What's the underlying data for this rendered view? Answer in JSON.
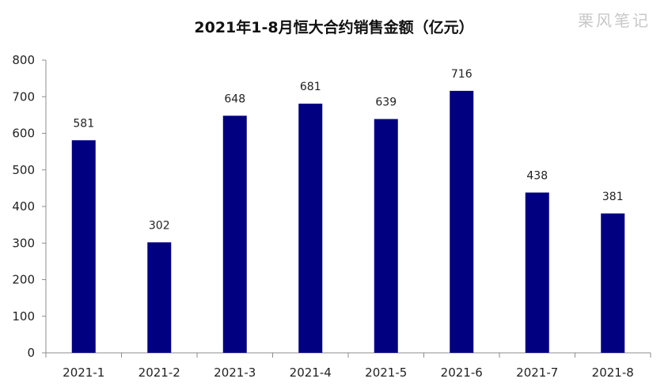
{
  "chart_data": {
    "type": "bar",
    "title": "2021年1-8月恒大合约销售金额（亿元）",
    "categories": [
      "2021-1",
      "2021-2",
      "2021-3",
      "2021-4",
      "2021-5",
      "2021-6",
      "2021-7",
      "2021-8"
    ],
    "series": [
      {
        "values": [
          581,
          302,
          648,
          681,
          639,
          716,
          438,
          381
        ]
      }
    ],
    "xlabel": "",
    "ylabel": "",
    "ylim": [
      0,
      800
    ],
    "yticks": [
      0,
      100,
      200,
      300,
      400,
      500,
      600,
      700,
      800
    ],
    "grid": false,
    "legend": "none",
    "bar_color": "#000080",
    "axis_color": "#8c8c8c"
  },
  "watermark": "栗风笔记"
}
